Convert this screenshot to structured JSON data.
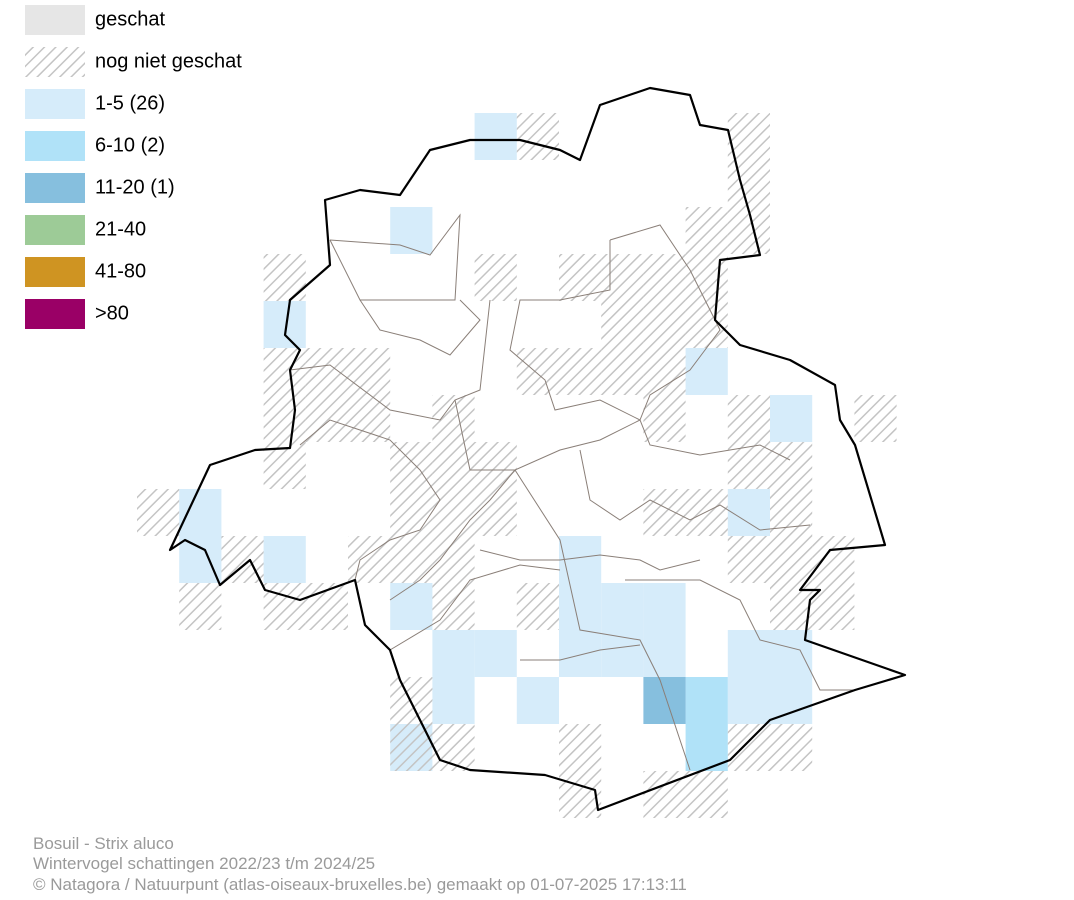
{
  "legend": [
    {
      "label": "geschat",
      "color": "#e6e6e6"
    },
    {
      "label": "nog niet geschat",
      "color": "#c8c8c8",
      "pattern": "hatch"
    },
    {
      "label": "1-5 (26)",
      "color": "#d6ecfa"
    },
    {
      "label": "6-10 (2)",
      "color": "#b0e2f8"
    },
    {
      "label": "11-20 (1)",
      "color": "#86bfde"
    },
    {
      "label": "21-40",
      "color": "#9dcb97"
    },
    {
      "label": "41-80",
      "color": "#cf9422"
    },
    {
      "label": ">80",
      "color": "#9a0066"
    }
  ],
  "footer": {
    "species": "Bosuil - Strix aluco",
    "period": "Wintervogel schattingen 2022/23 t/m 2024/25",
    "credit": "© Natagora / Natuurpunt (atlas-oiseaux-bruxelles.be) gemaakt op 01-07-2025 17:13:11"
  }
}
